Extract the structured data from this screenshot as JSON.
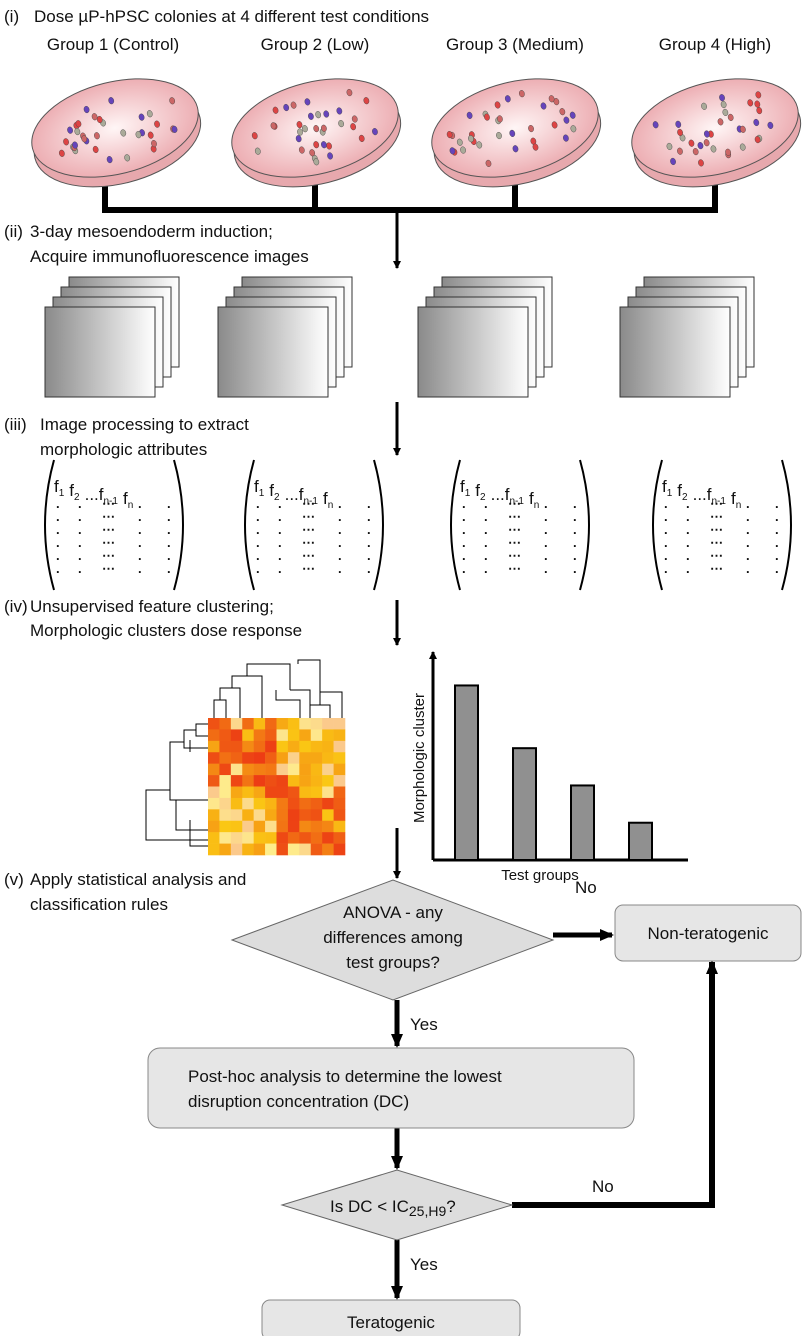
{
  "steps": [
    {
      "label": "(i)",
      "lines": [
        "Dose µP-hPSC colonies at 4 different test conditions"
      ]
    },
    {
      "label": "(ii)",
      "lines": [
        "3-day mesoendoderm induction;",
        "Acquire immunofluorescence images"
      ]
    },
    {
      "label": "(iii)",
      "lines": [
        "Image processing to extract",
        "morphologic attributes"
      ]
    },
    {
      "label": "(iv)",
      "lines": [
        "Unsupervised feature clustering;",
        "Morphologic clusters dose response"
      ]
    },
    {
      "label": "(v)",
      "lines": [
        "Apply statistical analysis and",
        "classification rules"
      ]
    }
  ],
  "groups": [
    "Group 1 (Control)",
    "Group 2 (Low)",
    "Group 3 (Medium)",
    "Group 4 (High)"
  ],
  "features": [
    {
      "base": "f",
      "sub": "1"
    },
    {
      "base": "f",
      "sub": "2"
    },
    {
      "base": "...f",
      "sub": "n-1"
    },
    {
      "base": "f",
      "sub": "n"
    }
  ],
  "bar_chart": {
    "ylabel": "Morphologic cluster",
    "xlabel": "Test groups",
    "values": [
      192,
      123,
      82,
      41
    ],
    "ylim": [
      0,
      220
    ]
  },
  "decision1": {
    "lines": [
      "ANOVA - any",
      "differences among",
      "test groups?"
    ],
    "no": "No",
    "yes": "Yes"
  },
  "non_teratogenic": "Non-teratogenic",
  "posthoc": {
    "lines": [
      "Post-hoc analysis to determine the lowest",
      "disruption concentration (DC)"
    ]
  },
  "decision2": {
    "text": "Is DC < IC",
    "sub": "25,H9",
    "suffix": "?",
    "no": "No",
    "yes": "Yes"
  },
  "teratogenic": "Teratogenic"
}
